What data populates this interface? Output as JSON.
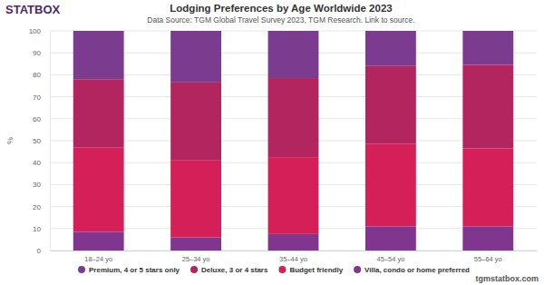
{
  "chart_data": {
    "type": "bar",
    "title": "Lodging Preferences by Age Worldwide 2023",
    "subtitle": "Data Source: TGM Global Travel Survey 2023, TGM Research. Link to source.",
    "annotations": [
      "STATBOX",
      "tgmstatbox.com"
    ],
    "y_label": "%",
    "categories": [
      "18–24 yo",
      "25–34 yo",
      "35–44 yo",
      "45–54 yo",
      "55–64 yo"
    ],
    "series": [
      {
        "name": "Premium, 4 or 5 stars only",
        "color": "#7b3c8f",
        "values": [
          22,
          23.5,
          21.5,
          16,
          15.5
        ]
      },
      {
        "name": "Deluxe, 3 or 4 stars",
        "color": "#b3255f",
        "values": [
          31,
          35.5,
          36,
          35.5,
          38
        ]
      },
      {
        "name": "Budget friendly",
        "color": "#d41f58",
        "values": [
          38.5,
          35,
          35,
          37.5,
          35.5
        ]
      },
      {
        "name": "Villa, condo or home preferred",
        "color": "#80358f",
        "values": [
          8.5,
          6,
          7.5,
          11,
          11
        ]
      }
    ],
    "ylim": [
      0,
      100
    ],
    "yticks": [
      0,
      10,
      20,
      30,
      40,
      50,
      60,
      70,
      80,
      90,
      100
    ],
    "stacked": true,
    "grid": true,
    "legend": "bottom"
  }
}
